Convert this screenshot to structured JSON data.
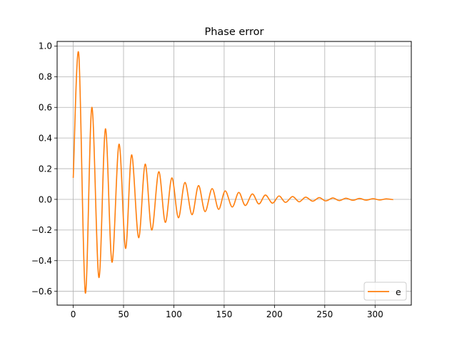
{
  "chart_data": {
    "type": "line",
    "title": "Phase error",
    "xlabel": "",
    "ylabel": "",
    "xlim": [
      -16,
      336
    ],
    "ylim": [
      -0.69,
      1.03
    ],
    "x_ticks": [
      0,
      50,
      100,
      150,
      200,
      250,
      300
    ],
    "y_ticks": [
      -0.6,
      -0.4,
      -0.2,
      0.0,
      0.2,
      0.4,
      0.6,
      0.8,
      1.0
    ],
    "x_tick_labels": [
      "0",
      "50",
      "100",
      "150",
      "200",
      "250",
      "300"
    ],
    "y_tick_labels": [
      "−0.6",
      "−0.4",
      "−0.2",
      "0.0",
      "0.2",
      "0.4",
      "0.6",
      "0.8",
      "1.0"
    ],
    "grid": true,
    "legend": {
      "position": "lower-right",
      "entries": [
        "e"
      ]
    },
    "series": [
      {
        "name": "e",
        "color": "#ff7f0e",
        "x": [
          0,
          5.5,
          12,
          18.5,
          25.5,
          32,
          38.5,
          45.5,
          52,
          58,
          65,
          71.5,
          78,
          85,
          91.5,
          98,
          104.5,
          111,
          118,
          124.5,
          131,
          138,
          144.5,
          151,
          158,
          164.5,
          171,
          178,
          184.5,
          191,
          198,
          204.5,
          211,
          218,
          224.5,
          231,
          238,
          244.5,
          251,
          258,
          264.5,
          271,
          278,
          284.5,
          291,
          298,
          304.5,
          311,
          318
        ],
        "y": [
          0.14,
          0.95,
          -0.61,
          0.6,
          -0.51,
          0.46,
          -0.41,
          0.36,
          -0.32,
          0.29,
          -0.25,
          0.23,
          -0.2,
          0.18,
          -0.15,
          0.14,
          -0.12,
          0.11,
          -0.1,
          0.09,
          -0.08,
          0.07,
          -0.065,
          0.055,
          -0.05,
          0.045,
          -0.04,
          0.035,
          -0.03,
          0.028,
          -0.025,
          0.022,
          -0.02,
          0.018,
          -0.016,
          0.014,
          -0.012,
          0.011,
          -0.01,
          0.009,
          -0.008,
          0.007,
          -0.006,
          0.006,
          -0.005,
          0.004,
          -0.004,
          0.003,
          -0.002
        ]
      }
    ]
  }
}
